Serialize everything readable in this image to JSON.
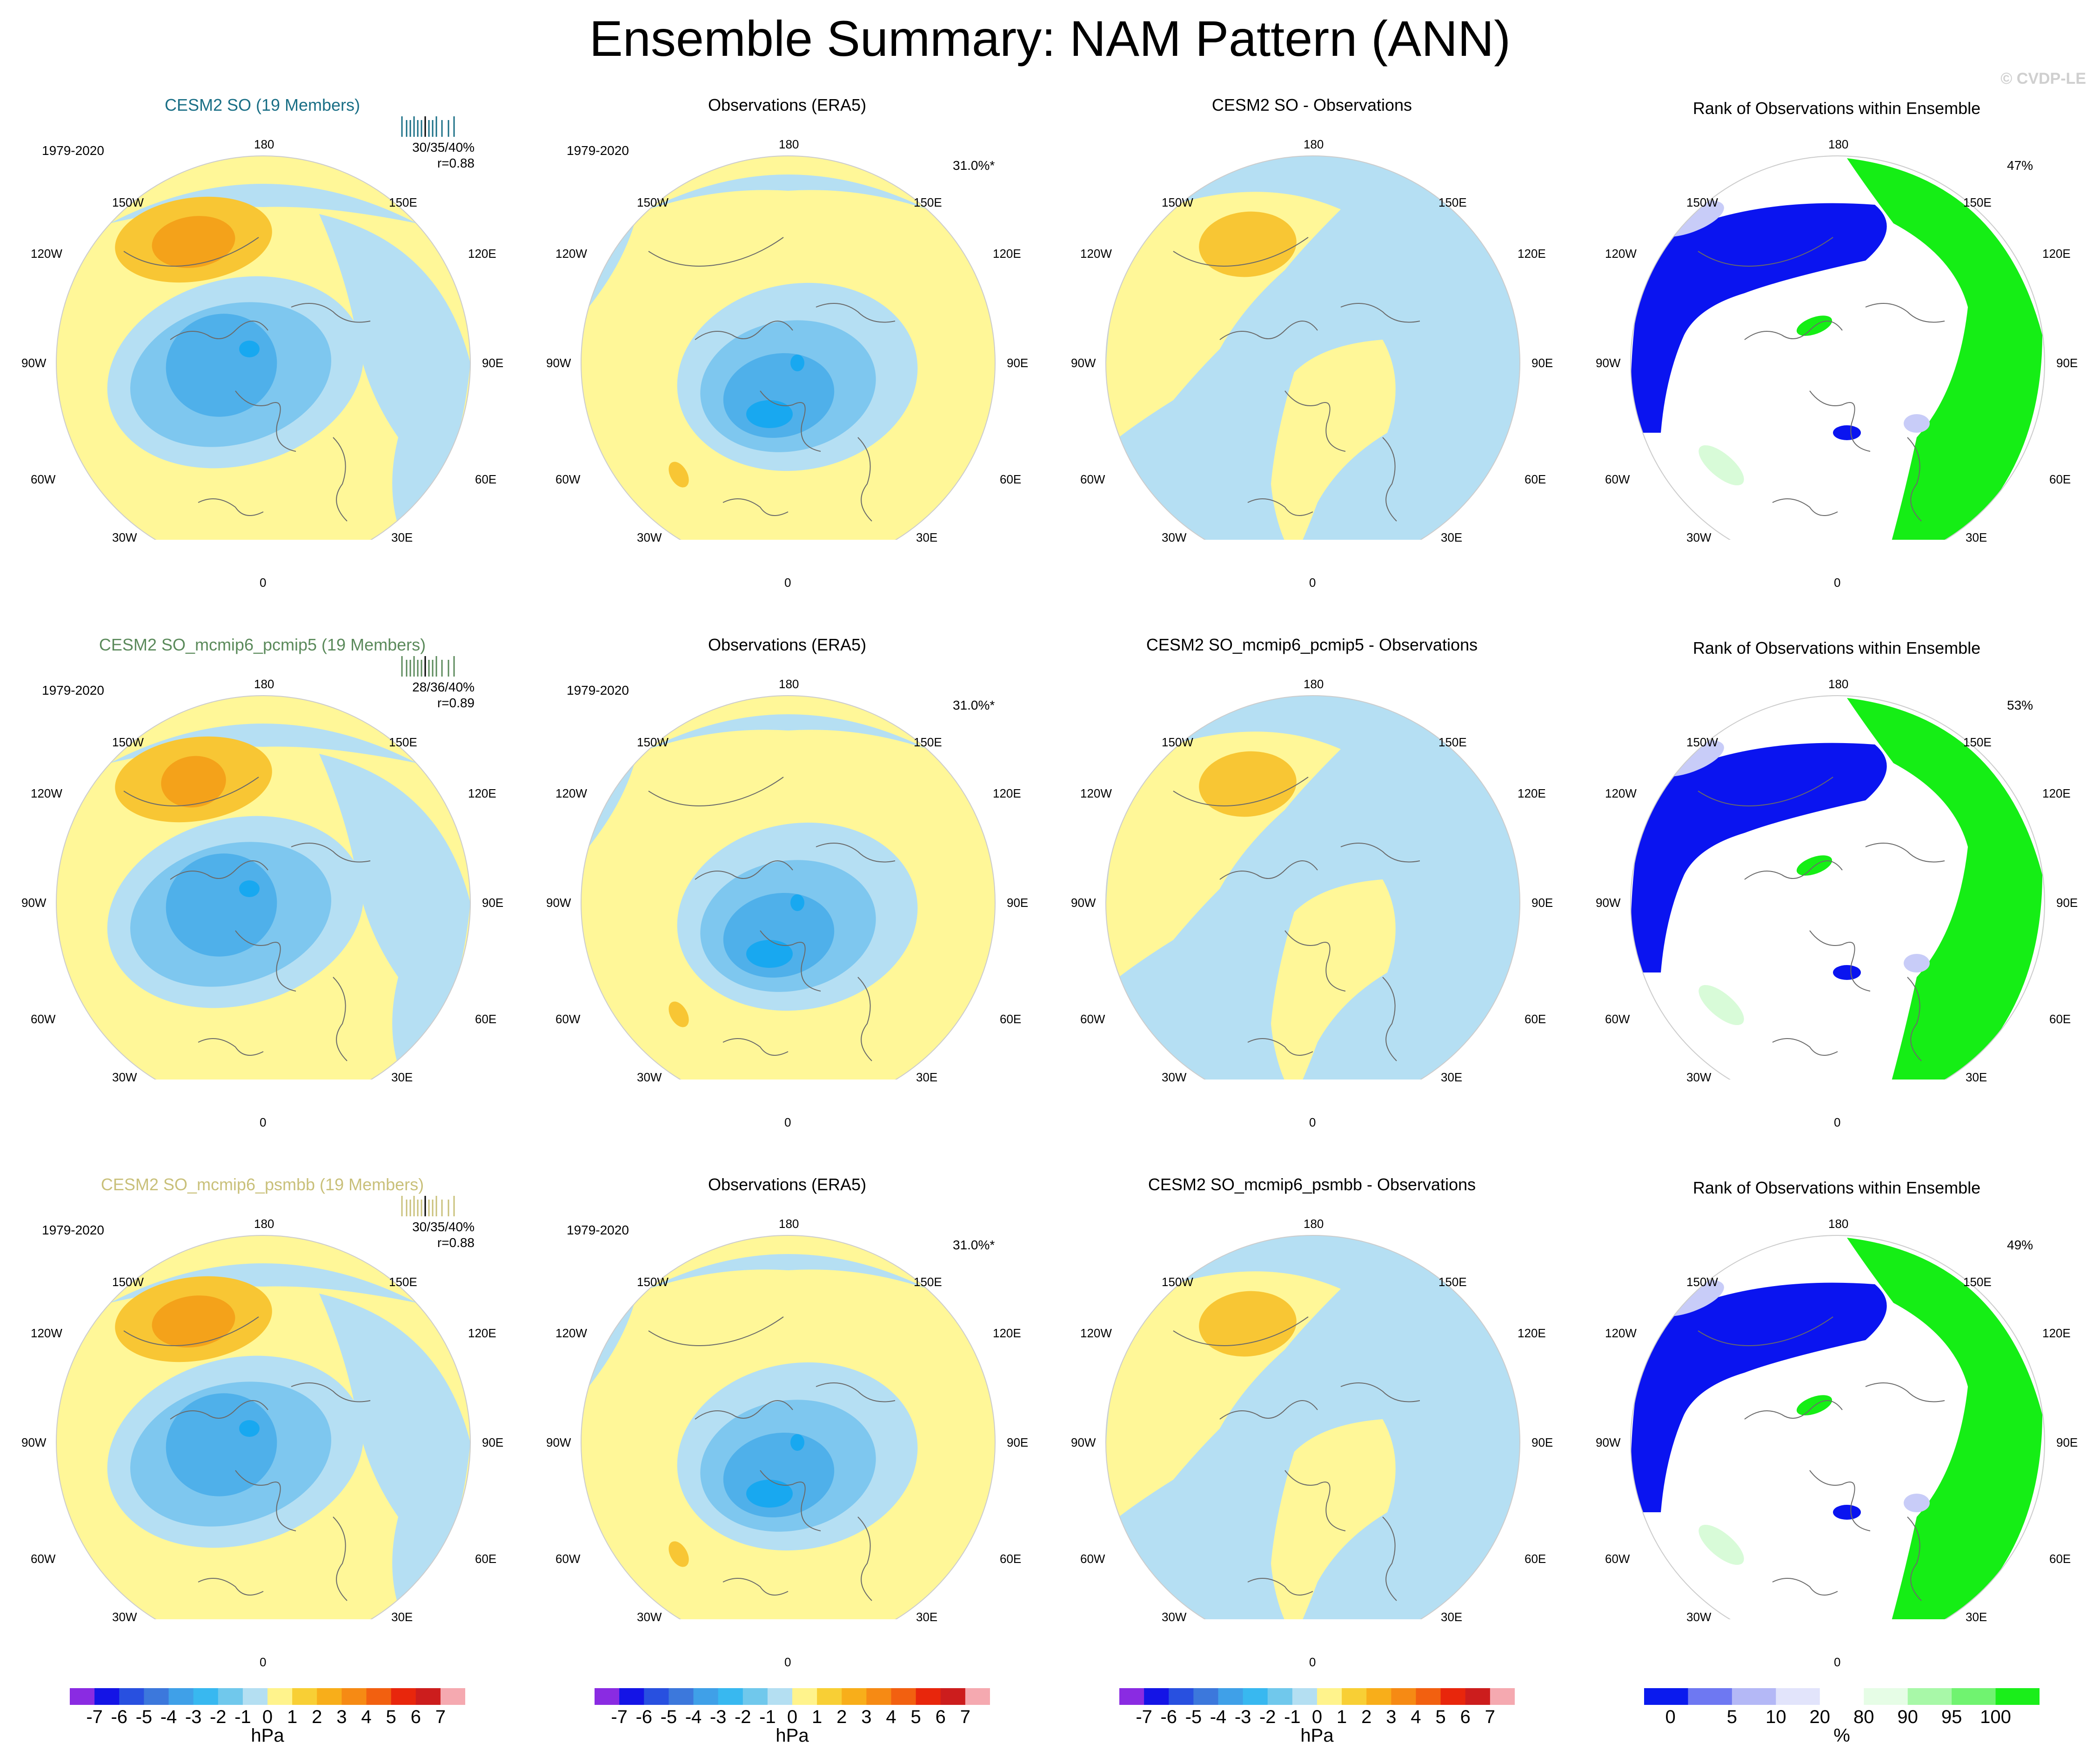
{
  "title": "Ensemble Summary: NAM Pattern (ANN)",
  "copyright": "© CVDP-LE",
  "rows": [
    {
      "model": {
        "title": "CESM2 SO (19 Members)",
        "title_color": "#1a6f86",
        "period": "1979-2020",
        "spread": "30/35/40%",
        "corr": "r=0.88"
      },
      "obs": {
        "title": "Observations (ERA5)",
        "period": "1979-2020",
        "pct": "31.0%*"
      },
      "diff": {
        "title": "CESM2 SO - Observations"
      },
      "rank": {
        "title": "Rank of Observations within Ensemble",
        "pct": "47%"
      }
    },
    {
      "model": {
        "title": "CESM2 SO_mcmip6_pcmip5 (19 Members)",
        "title_color": "#5b8a5b",
        "period": "1979-2020",
        "spread": "28/36/40%",
        "corr": "r=0.89"
      },
      "obs": {
        "title": "Observations (ERA5)",
        "period": "1979-2020",
        "pct": "31.0%*"
      },
      "diff": {
        "title": "CESM2 SO_mcmip6_pcmip5 - Observations"
      },
      "rank": {
        "title": "Rank of Observations within Ensemble",
        "pct": "53%"
      }
    },
    {
      "model": {
        "title": "CESM2 SO_mcmip6_psmbb (19 Members)",
        "title_color": "#c9c07a",
        "period": "1979-2020",
        "spread": "30/35/40%",
        "corr": "r=0.88"
      },
      "obs": {
        "title": "Observations (ERA5)",
        "period": "1979-2020",
        "pct": "31.0%*"
      },
      "diff": {
        "title": "CESM2 SO_mcmip6_psmbb - Observations"
      },
      "rank": {
        "title": "Rank of Observations within Ensemble",
        "pct": "49%"
      }
    }
  ],
  "map_labels": {
    "top": "180",
    "bottom": "0",
    "left": "90W",
    "right": "90E",
    "ul1": "150W",
    "ul2": "120W",
    "ll1": "60W",
    "ll2": "30W",
    "ur1": "150E",
    "ur2": "120E",
    "lr1": "60E",
    "lr2": "30E"
  },
  "colorbar_hpa": {
    "colors": [
      "#8a2be2",
      "#1414e6",
      "#2850e0",
      "#3c78dc",
      "#3fa0e8",
      "#38b8f0",
      "#70c8ec",
      "#b4dff2",
      "#fff38c",
      "#f8cf35",
      "#f8ae1a",
      "#f68a14",
      "#f26010",
      "#e8260c",
      "#cc1d1d",
      "#f5a9b0"
    ],
    "ticks": [
      "-7",
      "-6",
      "-5",
      "-4",
      "-3",
      "-2",
      "-1",
      "0",
      "1",
      "2",
      "3",
      "4",
      "5",
      "6",
      "7"
    ],
    "unit": "hPa"
  },
  "colorbar_rank": {
    "colors": [
      "#0a1aee",
      "#6e78f2",
      "#b4b8f6",
      "#e2e4fb",
      "#ffffff",
      "#e6fde6",
      "#a8f8a8",
      "#70f370",
      "#1aee1a"
    ],
    "ticks": [
      "0",
      "5",
      "10",
      "20",
      "80",
      "90",
      "95",
      "100"
    ],
    "unit": "%"
  },
  "palette": {
    "yellow": "#fff798",
    "light_blue": "#b5dff3",
    "mid_blue": "#7ec7ef",
    "deep_blue": "#4fb0ea",
    "core_blue": "#18a8f0",
    "orange1": "#f8c634",
    "orange2": "#f4a21a",
    "rank_blue": "#0a14f0",
    "rank_green": "#15ee15",
    "rank_lightblue": "#c8ccf8",
    "rank_lightgreen": "#d8fbd8"
  }
}
